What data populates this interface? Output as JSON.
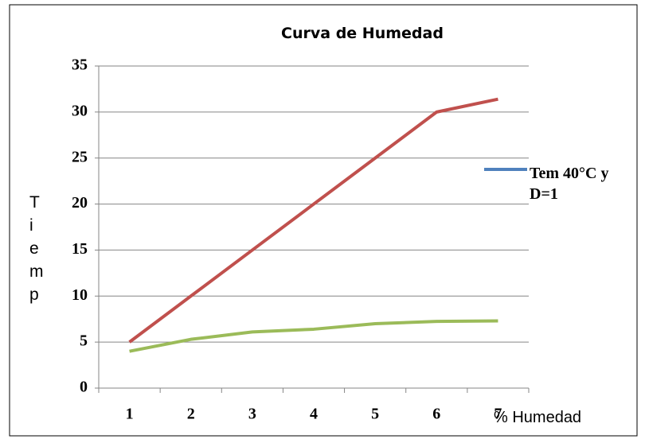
{
  "chart_data": {
    "type": "line",
    "title": "Curva de Humedad",
    "xlabel": "% Humedad",
    "ylabel": "Tiemp",
    "categories": [
      "1",
      "2",
      "3",
      "4",
      "5",
      "6",
      "7"
    ],
    "series": [
      {
        "color": "#c0504d",
        "values": [
          5,
          10,
          15,
          20,
          25,
          30,
          31.4
        ]
      },
      {
        "color": "#9bbb59",
        "values": [
          4,
          5.3,
          6.1,
          6.4,
          7,
          7.25,
          7.3
        ]
      }
    ],
    "legend": {
      "label": "Tem 40°C y D=1",
      "color": "#4f81bd"
    },
    "ylim": [
      0,
      35
    ],
    "yticks": [
      0,
      5,
      10,
      15,
      20,
      25,
      30,
      35
    ],
    "grid": true
  }
}
